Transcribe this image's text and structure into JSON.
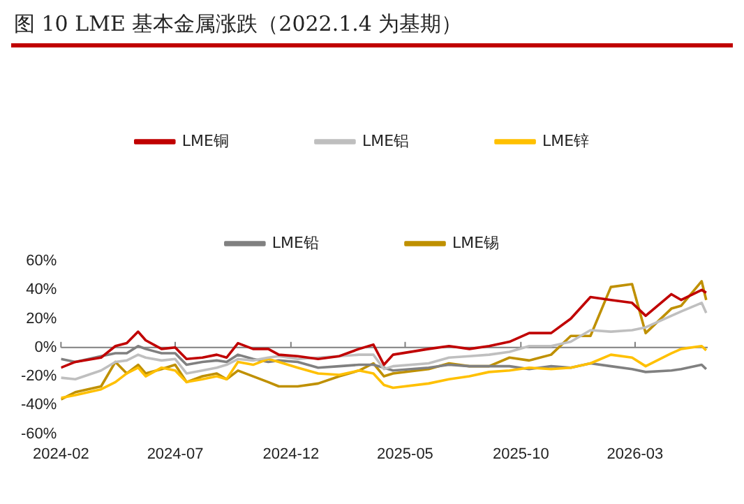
{
  "chart_data": {
    "type": "line",
    "title": "图 10 LME 基本金属涨跌（2022.1.4 为基期）",
    "x": [
      "2024-02-01",
      "2024-02-20",
      "2024-03-25",
      "2024-04-13",
      "2024-04-28",
      "2024-05-13",
      "2024-05-23",
      "2024-06-13",
      "2024-07-01",
      "2024-07-16",
      "2024-08-06",
      "2024-08-25",
      "2024-09-07",
      "2024-09-22",
      "2024-10-12",
      "2024-11-01",
      "2024-11-15",
      "2024-12-10",
      "2025-01-06",
      "2025-02-03",
      "2025-03-01",
      "2025-03-20",
      "2025-04-03",
      "2025-04-15",
      "2025-06-01",
      "2025-06-28",
      "2025-07-25",
      "2025-08-20",
      "2025-09-16",
      "2025-10-12",
      "2025-11-10",
      "2025-12-06",
      "2026-01-01",
      "2026-01-28",
      "2026-02-25",
      "2026-03-15",
      "2026-04-18",
      "2026-05-01",
      "2026-05-28",
      "2026-06-03"
    ],
    "series": [
      {
        "name": "LME铜",
        "color": "#c00000",
        "values": [
          -14,
          -10,
          -7,
          1,
          3,
          11,
          5,
          -1,
          0,
          -8,
          -7,
          -5,
          -7,
          3,
          -1,
          -1,
          -5,
          -6,
          -8,
          -6,
          -1,
          2,
          -12,
          -5,
          -1,
          1,
          -1,
          1,
          4,
          10,
          10,
          20,
          35,
          33,
          31,
          22,
          37,
          33,
          40,
          38
        ]
      },
      {
        "name": "LME铝",
        "color": "#bfbfbf",
        "values": [
          -21,
          -22,
          -16,
          -10,
          -9,
          -5,
          -7,
          -9,
          -8,
          -18,
          -16,
          -14,
          -12,
          -8,
          -9,
          -7,
          -6,
          -8,
          -7,
          -6,
          -5,
          -5,
          -15,
          -13,
          -11,
          -7,
          -6,
          -5,
          -3,
          1,
          1,
          4,
          12,
          11,
          12,
          14,
          22,
          25,
          31,
          24
        ]
      },
      {
        "name": "LME锌",
        "color": "#ffc000",
        "values": [
          -35,
          -33,
          -29,
          -24,
          -18,
          -14,
          -20,
          -14,
          -16,
          -24,
          -22,
          -20,
          -22,
          -10,
          -12,
          -8,
          -10,
          -14,
          -18,
          -19,
          -16,
          -18,
          -26,
          -28,
          -25,
          -22,
          -20,
          -17,
          -16,
          -14,
          -15,
          -14,
          -11,
          -5,
          -7,
          -13,
          -4,
          -1,
          1,
          -2
        ]
      },
      {
        "name": "LME铅",
        "color": "#808080",
        "values": [
          -8,
          -10,
          -6,
          -4,
          -4,
          1,
          -1,
          -4,
          -4,
          -12,
          -10,
          -9,
          -10,
          -5,
          -8,
          -10,
          -9,
          -10,
          -14,
          -13,
          -12,
          -12,
          -14,
          -16,
          -14,
          -12,
          -13,
          -13,
          -13,
          -15,
          -13,
          -14,
          -11,
          -13,
          -15,
          -17,
          -16,
          -15,
          -12,
          -15
        ]
      },
      {
        "name": "LME锡",
        "color": "#bf9000",
        "values": [
          -36,
          -31,
          -27,
          -10,
          -18,
          -12,
          -18,
          -15,
          -12,
          -24,
          -20,
          -18,
          -22,
          -16,
          -20,
          -24,
          -27,
          -27,
          -25,
          -20,
          -16,
          -11,
          -20,
          -18,
          -15,
          -11,
          -13,
          -13,
          -7,
          -9,
          -5,
          8,
          8,
          42,
          44,
          10,
          27,
          29,
          46,
          33
        ]
      }
    ],
    "xlim": [
      "2024-02-01",
      "2026-06-05"
    ],
    "xticks": [
      "2024-02",
      "2024-07",
      "2024-12",
      "2025-05",
      "2025-10",
      "2026-03"
    ],
    "ylim": [
      -60,
      60
    ],
    "yticks": [
      {
        "value": -60,
        "label": "-60%"
      },
      {
        "value": -40,
        "label": "-40%"
      },
      {
        "value": -20,
        "label": "-20%"
      },
      {
        "value": 0,
        "label": "0%"
      },
      {
        "value": 20,
        "label": "20%"
      },
      {
        "value": 40,
        "label": "40%"
      },
      {
        "value": 60,
        "label": "60%"
      }
    ],
    "ref_lines": [
      {
        "axis": "y",
        "value": 0,
        "color": "#808080"
      }
    ],
    "legend": "top",
    "grid": false,
    "marker": "none",
    "line_style": "solid"
  }
}
